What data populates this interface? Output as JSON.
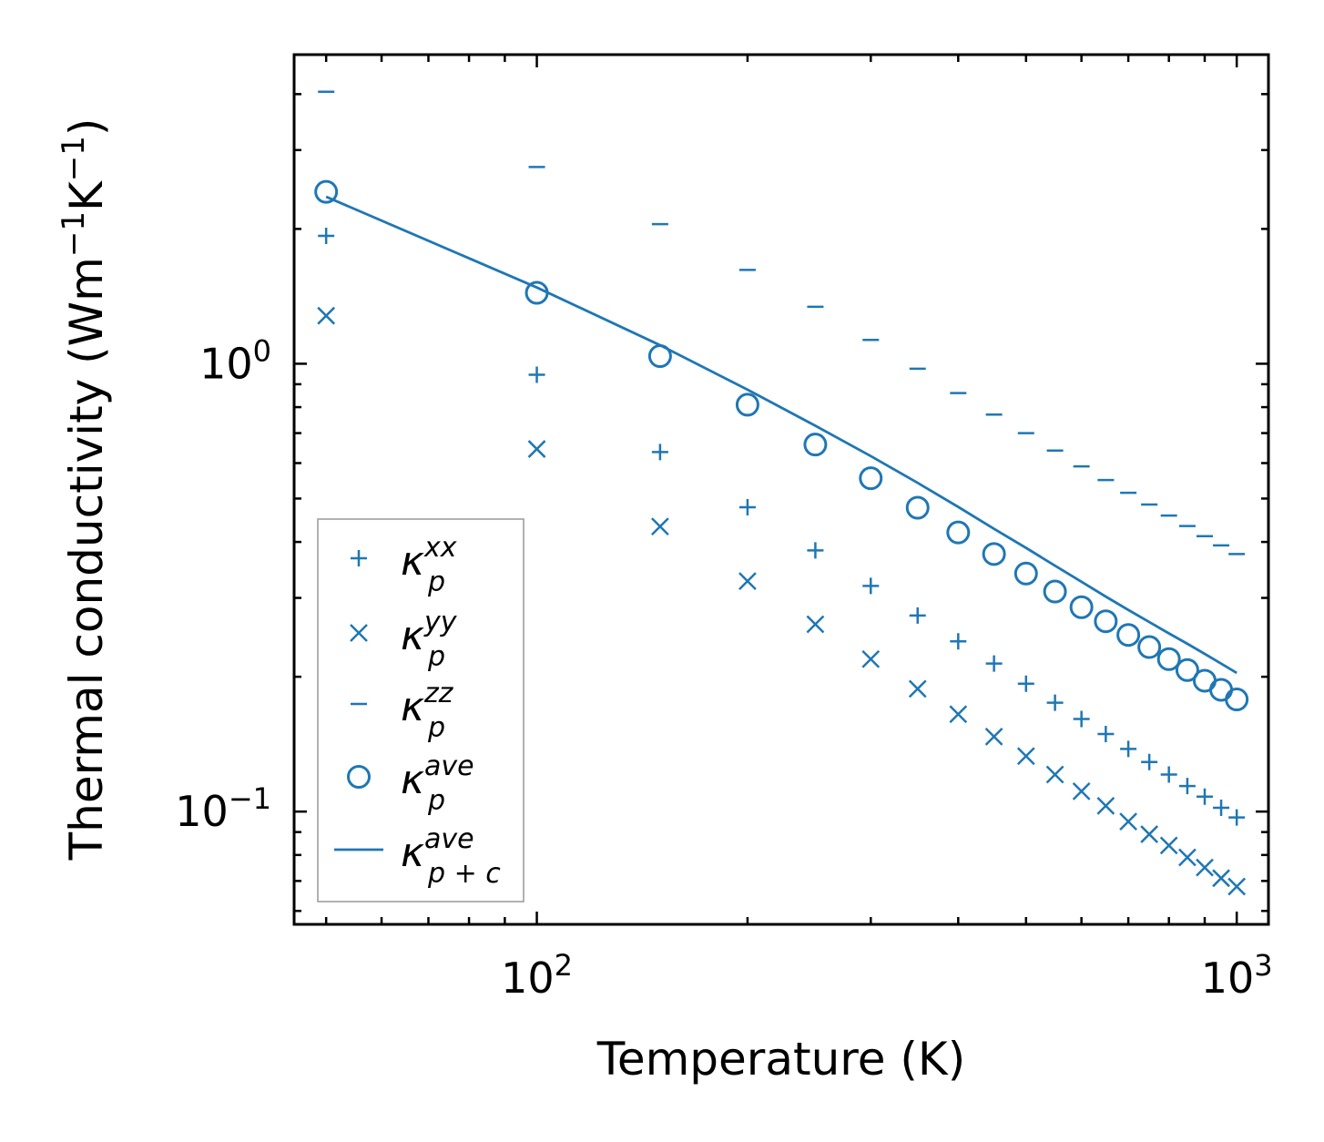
{
  "chart_data": {
    "type": "scatter",
    "title": "",
    "xlabel": "Temperature (K)",
    "ylabel_parts": [
      "Thermal conductivity (Wm",
      "−1",
      "K",
      "−1",
      ")"
    ],
    "xscale": "log",
    "yscale": "log",
    "xlim": [
      45,
      1110
    ],
    "ylim": [
      0.056,
      4.9
    ],
    "x_ticks": [
      {
        "value": 100,
        "base": "10",
        "exp": "2"
      },
      {
        "value": 1000,
        "base": "10",
        "exp": "3"
      }
    ],
    "y_ticks": [
      {
        "value": 0.1,
        "base": "10",
        "exp": "−1"
      },
      {
        "value": 1,
        "base": "10",
        "exp": "0"
      }
    ],
    "color": "#1f77b4",
    "x": [
      50,
      100,
      150,
      200,
      250,
      300,
      350,
      400,
      450,
      500,
      550,
      600,
      650,
      700,
      750,
      800,
      850,
      900,
      950,
      1000
    ],
    "series": [
      {
        "name": "kxx",
        "marker": "plus",
        "legend": {
          "base": "κ",
          "sub": "p",
          "sup": "xx"
        },
        "values": [
          1.93,
          0.945,
          0.635,
          0.478,
          0.383,
          0.319,
          0.274,
          0.24,
          0.214,
          0.193,
          0.175,
          0.161,
          0.149,
          0.138,
          0.129,
          0.121,
          0.114,
          0.108,
          0.102,
          0.097
        ]
      },
      {
        "name": "kyy",
        "marker": "x",
        "legend": {
          "base": "κ",
          "sub": "p",
          "sup": "yy"
        },
        "values": [
          1.28,
          0.645,
          0.433,
          0.327,
          0.262,
          0.219,
          0.188,
          0.165,
          0.147,
          0.133,
          0.121,
          0.111,
          0.103,
          0.095,
          0.089,
          0.084,
          0.079,
          0.075,
          0.071,
          0.068
        ]
      },
      {
        "name": "kzz",
        "marker": "minus",
        "legend": {
          "base": "κ",
          "sub": "p",
          "sup": "zz"
        },
        "values": [
          4.05,
          2.75,
          2.05,
          1.62,
          1.34,
          1.13,
          0.975,
          0.86,
          0.77,
          0.7,
          0.64,
          0.59,
          0.55,
          0.515,
          0.485,
          0.458,
          0.434,
          0.412,
          0.393,
          0.376
        ]
      },
      {
        "name": "kave",
        "marker": "circle",
        "legend": {
          "base": "κ",
          "sub": "p",
          "sup": "ave"
        },
        "values": [
          2.42,
          1.44,
          1.04,
          0.81,
          0.66,
          0.555,
          0.477,
          0.42,
          0.376,
          0.34,
          0.31,
          0.286,
          0.266,
          0.248,
          0.233,
          0.219,
          0.207,
          0.196,
          0.187,
          0.178
        ]
      },
      {
        "name": "kave_pc",
        "marker": "line",
        "legend": {
          "base": "κ",
          "sub": "p + c",
          "sup": "ave"
        },
        "values": [
          2.36,
          1.48,
          1.1,
          0.875,
          0.727,
          0.622,
          0.542,
          0.479,
          0.428,
          0.388,
          0.354,
          0.326,
          0.302,
          0.282,
          0.265,
          0.25,
          0.237,
          0.225,
          0.214,
          0.204
        ]
      }
    ],
    "legend_position": "lower-left",
    "grid": false
  }
}
